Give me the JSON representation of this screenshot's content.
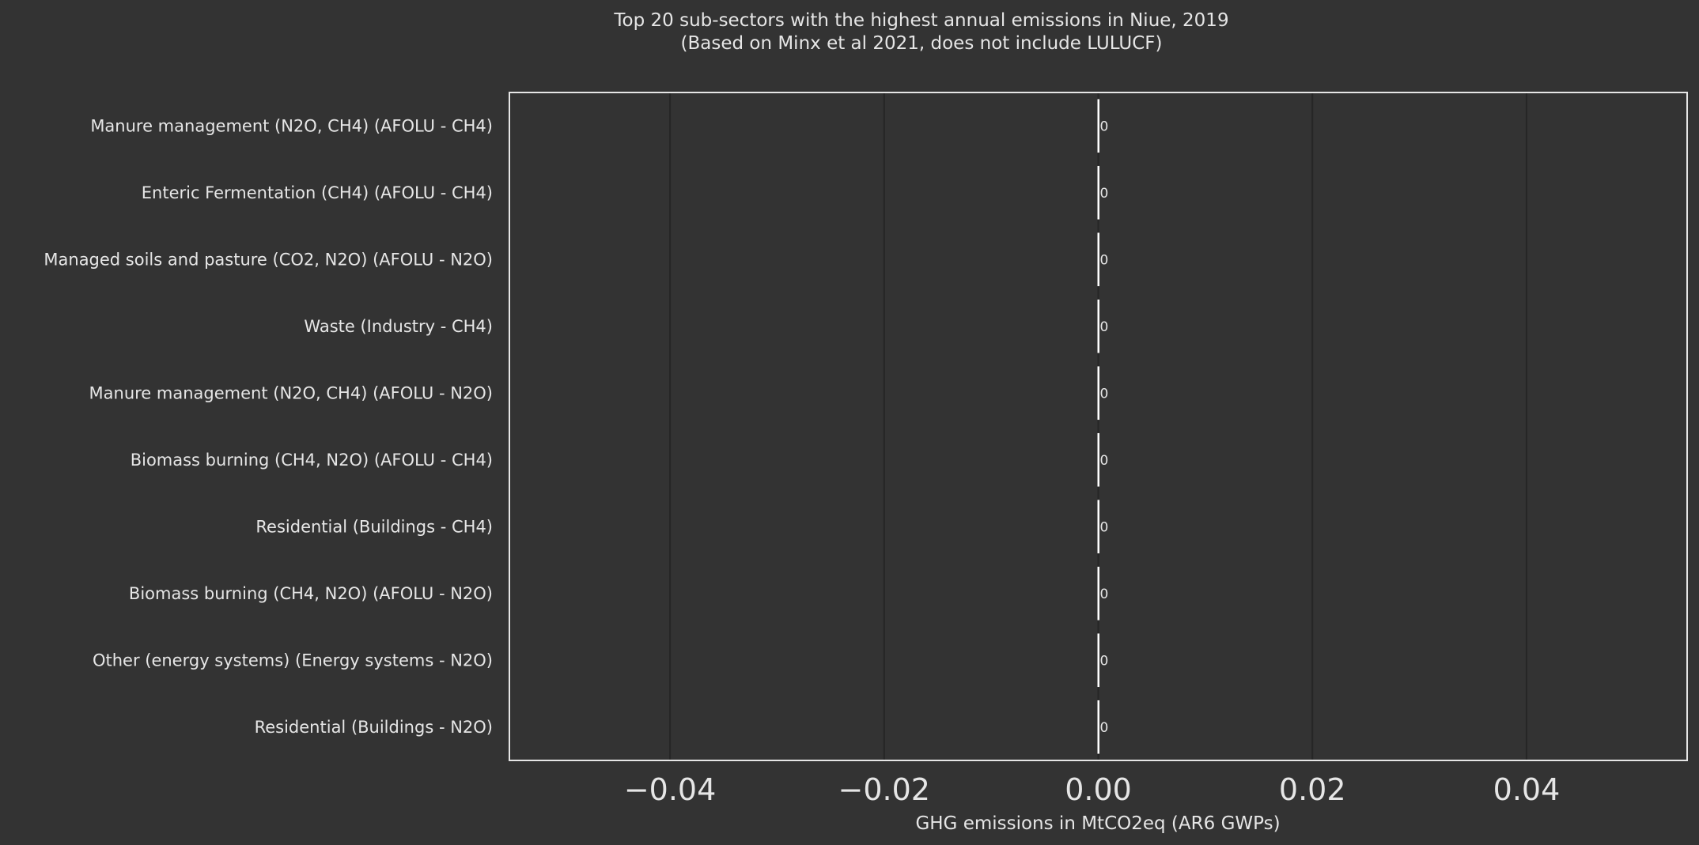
{
  "chart_data": {
    "type": "bar",
    "orientation": "horizontal",
    "title": "Top 20 sub-sectors with the highest annual emissions in Niue, 2019",
    "subtitle": "(Based on Minx et al 2021, does not include LULUCF)",
    "xlabel": "GHG emissions in MtCO2eq (AR6 GWPs)",
    "ylabel": "",
    "xlim": [
      -0.055,
      0.055
    ],
    "xticks": [
      -0.04,
      -0.02,
      0.0,
      0.02,
      0.04
    ],
    "xtick_labels": [
      "−0.04",
      "−0.02",
      "0.00",
      "0.02",
      "0.04"
    ],
    "grid": true,
    "categories": [
      "Manure management (N2O, CH4) (AFOLU - CH4)",
      "Enteric Fermentation (CH4) (AFOLU - CH4)",
      "Managed soils and pasture (CO2, N2O) (AFOLU - N2O)",
      "Waste (Industry - CH4)",
      "Manure management (N2O, CH4) (AFOLU - N2O)",
      "Biomass burning (CH4, N2O) (AFOLU - CH4)",
      "Residential (Buildings - CH4)",
      "Biomass burning (CH4, N2O) (AFOLU - N2O)",
      "Other (energy systems) (Energy systems - N2O)",
      "Residential (Buildings - N2O)"
    ],
    "values": [
      0,
      0,
      0,
      0,
      0,
      0,
      0,
      0,
      0,
      0
    ],
    "data_labels": [
      "0",
      "0",
      "0",
      "0",
      "0",
      "0",
      "0",
      "0",
      "0",
      "0"
    ],
    "colors": {
      "background": "#333333",
      "bar": "#ffffff",
      "text": "#e6e6e6",
      "frame": "#e6e6e6",
      "grid": "#262626"
    }
  }
}
